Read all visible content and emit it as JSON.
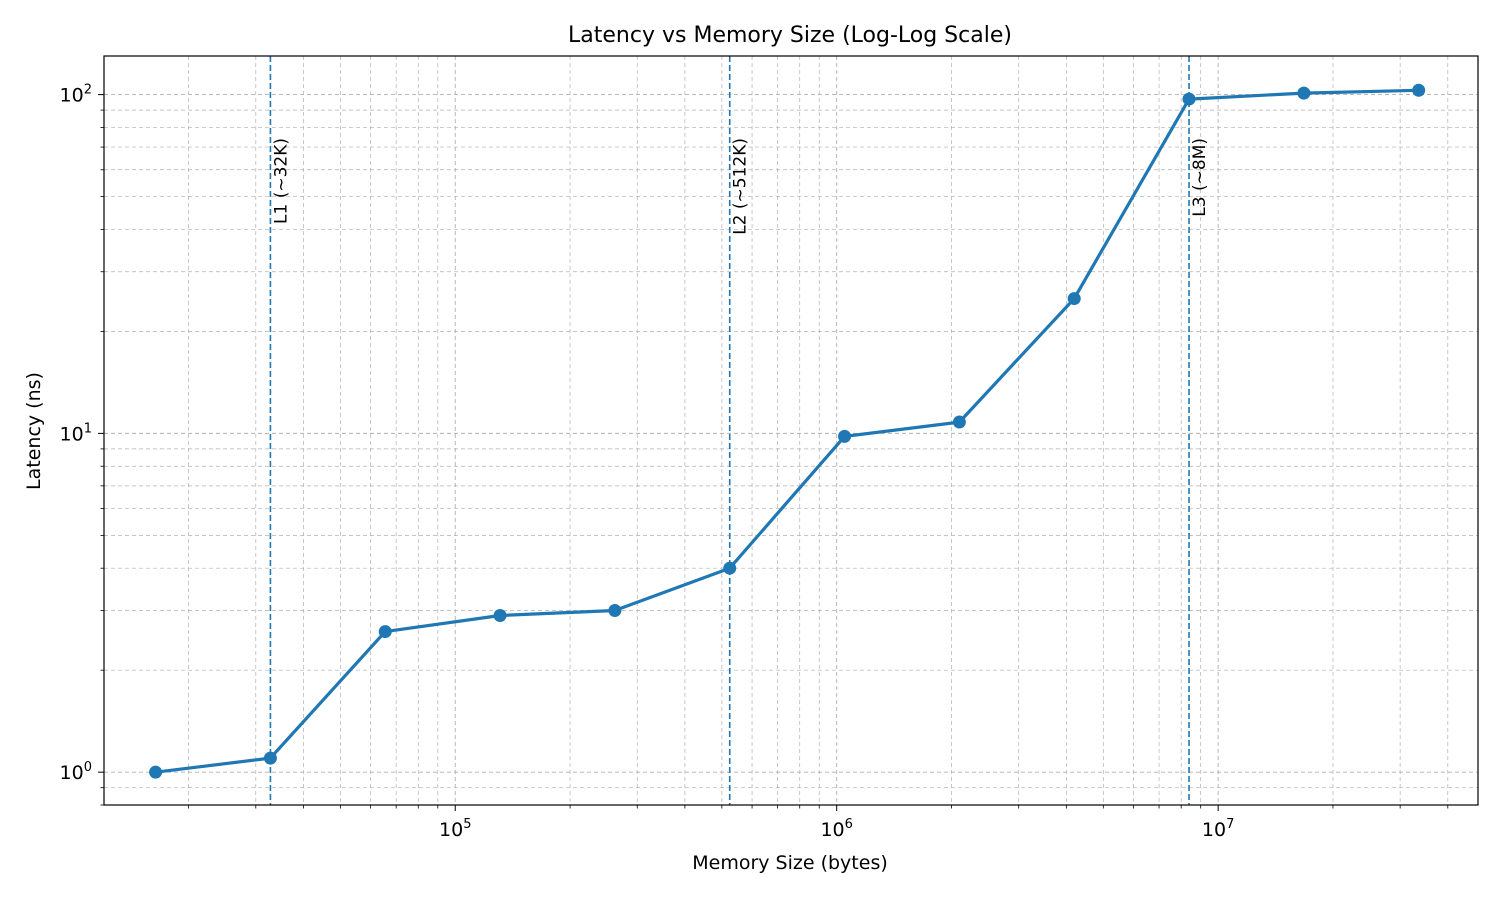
{
  "chart_data": {
    "type": "line",
    "title": "Latency vs Memory Size (Log-Log Scale)",
    "xlabel": "Memory Size (bytes)",
    "ylabel": "Latency (ns)",
    "xscale": "log",
    "yscale": "log",
    "xlim": [
      12000,
      48000000
    ],
    "ylim": [
      0.8,
      130
    ],
    "grid": true,
    "grid_minor": true,
    "line_color": "#1f77b4",
    "marker": "circle",
    "x_ticks": [
      {
        "value": 100000,
        "base": "10",
        "exp": "5"
      },
      {
        "value": 1000000,
        "base": "10",
        "exp": "6"
      },
      {
        "value": 10000000,
        "base": "10",
        "exp": "7"
      }
    ],
    "y_ticks": [
      {
        "value": 1,
        "base": "10",
        "exp": "0"
      },
      {
        "value": 10,
        "base": "10",
        "exp": "1"
      },
      {
        "value": 100,
        "base": "10",
        "exp": "2"
      }
    ],
    "series": [
      {
        "x": [
          16384,
          32768,
          65536,
          131072,
          262144,
          524288,
          1048576,
          2097152,
          4194304,
          8388608,
          16777216,
          33554432
        ],
        "y": [
          1.0,
          1.1,
          2.6,
          2.9,
          3.0,
          4.0,
          9.8,
          10.8,
          25.0,
          97.0,
          101.0,
          103.0
        ]
      }
    ],
    "vlines": [
      {
        "x": 32768,
        "label": "L1 (~32K)",
        "color": "#1f77b4",
        "style": "dashed"
      },
      {
        "x": 524288,
        "label": "L2 (~512K)",
        "color": "#1f77b4",
        "style": "dashed"
      },
      {
        "x": 8388608,
        "label": "L3 (~8M)",
        "color": "#1f77b4",
        "style": "dashed"
      }
    ]
  }
}
